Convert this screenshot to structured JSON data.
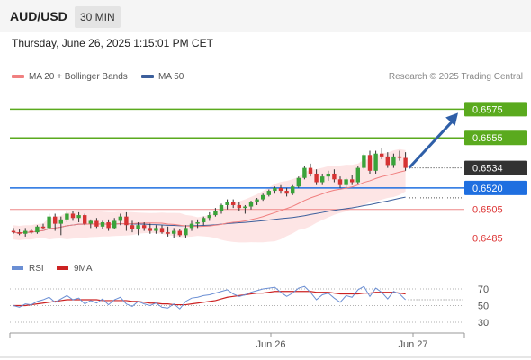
{
  "header": {
    "symbol": "AUD/USD",
    "timeframe": "30 MIN"
  },
  "datetime": "Thursday, June 26, 2025 1:15:01 PM CET",
  "legend": {
    "ma20_label": "MA 20 + Bollinger Bands",
    "ma50_label": "MA 50",
    "credit": "Research © 2025 Trading Central"
  },
  "rsi_legend": {
    "rsi_label": "RSI",
    "ma_label": "9MA"
  },
  "colors": {
    "up": "#3aa33a",
    "down": "#d63333",
    "green_level": "#5aaa1e",
    "blue_level": "#1f6fe0",
    "red_level": "#ee8888",
    "ma20": "#f08080",
    "ma50": "#3c5f9c",
    "band": "#fde0e0",
    "arrow": "#2f5fa8",
    "price_tag": "#333333",
    "rsi": "#6b8fd4",
    "rsi_ma": "#cc2222"
  },
  "chart_data": {
    "type": "candlestick",
    "title": "AUD/USD",
    "timeframe": "30 MIN",
    "ylim": [
      6474,
      6591
    ],
    "last_price": "0.6534",
    "levels": [
      {
        "label": "0.6575",
        "value": 6575,
        "kind": "resistance"
      },
      {
        "label": "0.6555",
        "value": 6555,
        "kind": "resistance"
      },
      {
        "label": "0.6520",
        "value": 6520,
        "kind": "pivot"
      },
      {
        "label": "0.6505",
        "value": 6505,
        "kind": "support"
      },
      {
        "label": "0.6485",
        "value": 6485,
        "kind": "support"
      }
    ],
    "arrow_target": 6575,
    "x_labels": [
      "Jun 26",
      "Jun 27"
    ],
    "candles": [
      [
        6490,
        6492,
        6488,
        6489
      ],
      [
        6489,
        6491,
        6487,
        6488
      ],
      [
        6488,
        6492,
        6486,
        6490
      ],
      [
        6490,
        6491,
        6488,
        6489
      ],
      [
        6489,
        6494,
        6488,
        6493
      ],
      [
        6493,
        6495,
        6491,
        6492
      ],
      [
        6492,
        6502,
        6491,
        6500
      ],
      [
        6500,
        6502,
        6490,
        6495
      ],
      [
        6495,
        6500,
        6487,
        6498
      ],
      [
        6498,
        6504,
        6496,
        6502
      ],
      [
        6502,
        6504,
        6497,
        6499
      ],
      [
        6499,
        6503,
        6496,
        6501
      ],
      [
        6501,
        6502,
        6494,
        6495
      ],
      [
        6495,
        6498,
        6492,
        6497
      ],
      [
        6497,
        6499,
        6492,
        6493
      ],
      [
        6493,
        6497,
        6491,
        6496
      ],
      [
        6496,
        6498,
        6490,
        6492
      ],
      [
        6492,
        6499,
        6491,
        6497
      ],
      [
        6497,
        6502,
        6494,
        6500
      ],
      [
        6500,
        6503,
        6490,
        6494
      ],
      [
        6494,
        6497,
        6489,
        6491
      ],
      [
        6491,
        6496,
        6487,
        6494
      ],
      [
        6494,
        6496,
        6490,
        6492
      ],
      [
        6492,
        6495,
        6488,
        6490
      ],
      [
        6490,
        6494,
        6488,
        6492
      ],
      [
        6492,
        6494,
        6488,
        6489
      ],
      [
        6489,
        6493,
        6486,
        6488
      ],
      [
        6488,
        6492,
        6485,
        6490
      ],
      [
        6490,
        6491,
        6486,
        6487
      ],
      [
        6487,
        6494,
        6485,
        6492
      ],
      [
        6492,
        6497,
        6490,
        6495
      ],
      [
        6495,
        6498,
        6492,
        6496
      ],
      [
        6496,
        6500,
        6494,
        6499
      ],
      [
        6499,
        6503,
        6497,
        6501
      ],
      [
        6501,
        6506,
        6500,
        6504
      ],
      [
        6504,
        6509,
        6502,
        6508
      ],
      [
        6508,
        6512,
        6505,
        6510
      ],
      [
        6510,
        6512,
        6506,
        6508
      ],
      [
        6508,
        6510,
        6504,
        6506
      ],
      [
        6506,
        6508,
        6502,
        6507
      ],
      [
        6507,
        6511,
        6505,
        6510
      ],
      [
        6510,
        6513,
        6508,
        6512
      ],
      [
        6512,
        6516,
        6511,
        6515
      ],
      [
        6515,
        6519,
        6514,
        6518
      ],
      [
        6518,
        6521,
        6516,
        6520
      ],
      [
        6520,
        6522,
        6516,
        6518
      ],
      [
        6518,
        6520,
        6514,
        6516
      ],
      [
        6516,
        6522,
        6515,
        6521
      ],
      [
        6521,
        6528,
        6520,
        6527
      ],
      [
        6527,
        6535,
        6526,
        6534
      ],
      [
        6534,
        6537,
        6528,
        6530
      ],
      [
        6530,
        6533,
        6522,
        6524
      ],
      [
        6524,
        6530,
        6522,
        6528
      ],
      [
        6528,
        6532,
        6525,
        6530
      ],
      [
        6530,
        6533,
        6524,
        6526
      ],
      [
        6526,
        6528,
        6520,
        6522
      ],
      [
        6522,
        6527,
        6520,
        6526
      ],
      [
        6526,
        6529,
        6522,
        6524
      ],
      [
        6524,
        6535,
        6523,
        6534
      ],
      [
        6534,
        6544,
        6533,
        6543
      ],
      [
        6543,
        6546,
        6530,
        6532
      ],
      [
        6532,
        6546,
        6530,
        6544
      ],
      [
        6544,
        6548,
        6540,
        6542
      ],
      [
        6542,
        6545,
        6534,
        6536
      ],
      [
        6536,
        6544,
        6534,
        6542
      ],
      [
        6542,
        6546,
        6539,
        6541
      ],
      [
        6541,
        6545,
        6532,
        6534
      ]
    ],
    "rsi": {
      "ylim": [
        20,
        80
      ],
      "ticks": [
        "70",
        "50",
        "30"
      ],
      "levels": [
        70,
        50,
        30
      ],
      "rsi": [
        50,
        48,
        52,
        51,
        55,
        57,
        60,
        54,
        58,
        62,
        57,
        59,
        52,
        56,
        53,
        58,
        51,
        57,
        60,
        52,
        49,
        55,
        52,
        50,
        53,
        48,
        47,
        52,
        46,
        55,
        59,
        60,
        62,
        63,
        65,
        67,
        69,
        64,
        61,
        63,
        66,
        68,
        70,
        71,
        72,
        66,
        61,
        65,
        71,
        73,
        66,
        57,
        63,
        65,
        59,
        54,
        62,
        60,
        69,
        73,
        61,
        71,
        66,
        58,
        67,
        64,
        57
      ],
      "ma": [
        50,
        50,
        50,
        51,
        52,
        53,
        54,
        55,
        56,
        57,
        57,
        57,
        57,
        57,
        57,
        56,
        56,
        56,
        56,
        56,
        55,
        55,
        54,
        53,
        53,
        52,
        52,
        51,
        51,
        51,
        52,
        53,
        54,
        55,
        56,
        58,
        60,
        61,
        62,
        63,
        64,
        65,
        65,
        66,
        67,
        67,
        67,
        67,
        67,
        67,
        67,
        66,
        66,
        66,
        65,
        64,
        64,
        64,
        64,
        65,
        65,
        66,
        66,
        66,
        66,
        65,
        64
      ]
    }
  }
}
